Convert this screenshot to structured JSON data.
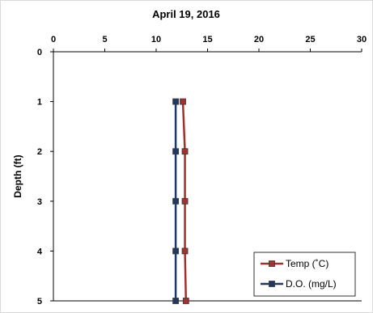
{
  "chart_data": {
    "type": "line",
    "title": "April 19, 2016",
    "xlabel": "",
    "ylabel": "Depth (ft)",
    "xlim": [
      0,
      30
    ],
    "ylim": [
      0,
      5
    ],
    "x_ticks": [
      0,
      5,
      10,
      15,
      20,
      25,
      30
    ],
    "y_ticks": [
      0,
      1,
      2,
      3,
      4,
      5
    ],
    "x_axis_position": "top",
    "y_inverted": true,
    "grid": false,
    "legend_position": "bottom-right",
    "series": [
      {
        "name": "Temp (˚C)",
        "color": "#a0322d",
        "marker": "square",
        "depth": [
          1,
          2,
          3,
          4,
          5
        ],
        "values": [
          12.6,
          12.8,
          12.8,
          12.8,
          12.9
        ]
      },
      {
        "name": "D.O. (mg/L)",
        "color": "#1f3864",
        "marker": "square",
        "depth": [
          1,
          2,
          3,
          4,
          5
        ],
        "values": [
          11.9,
          11.9,
          11.9,
          11.9,
          11.9
        ]
      }
    ]
  }
}
